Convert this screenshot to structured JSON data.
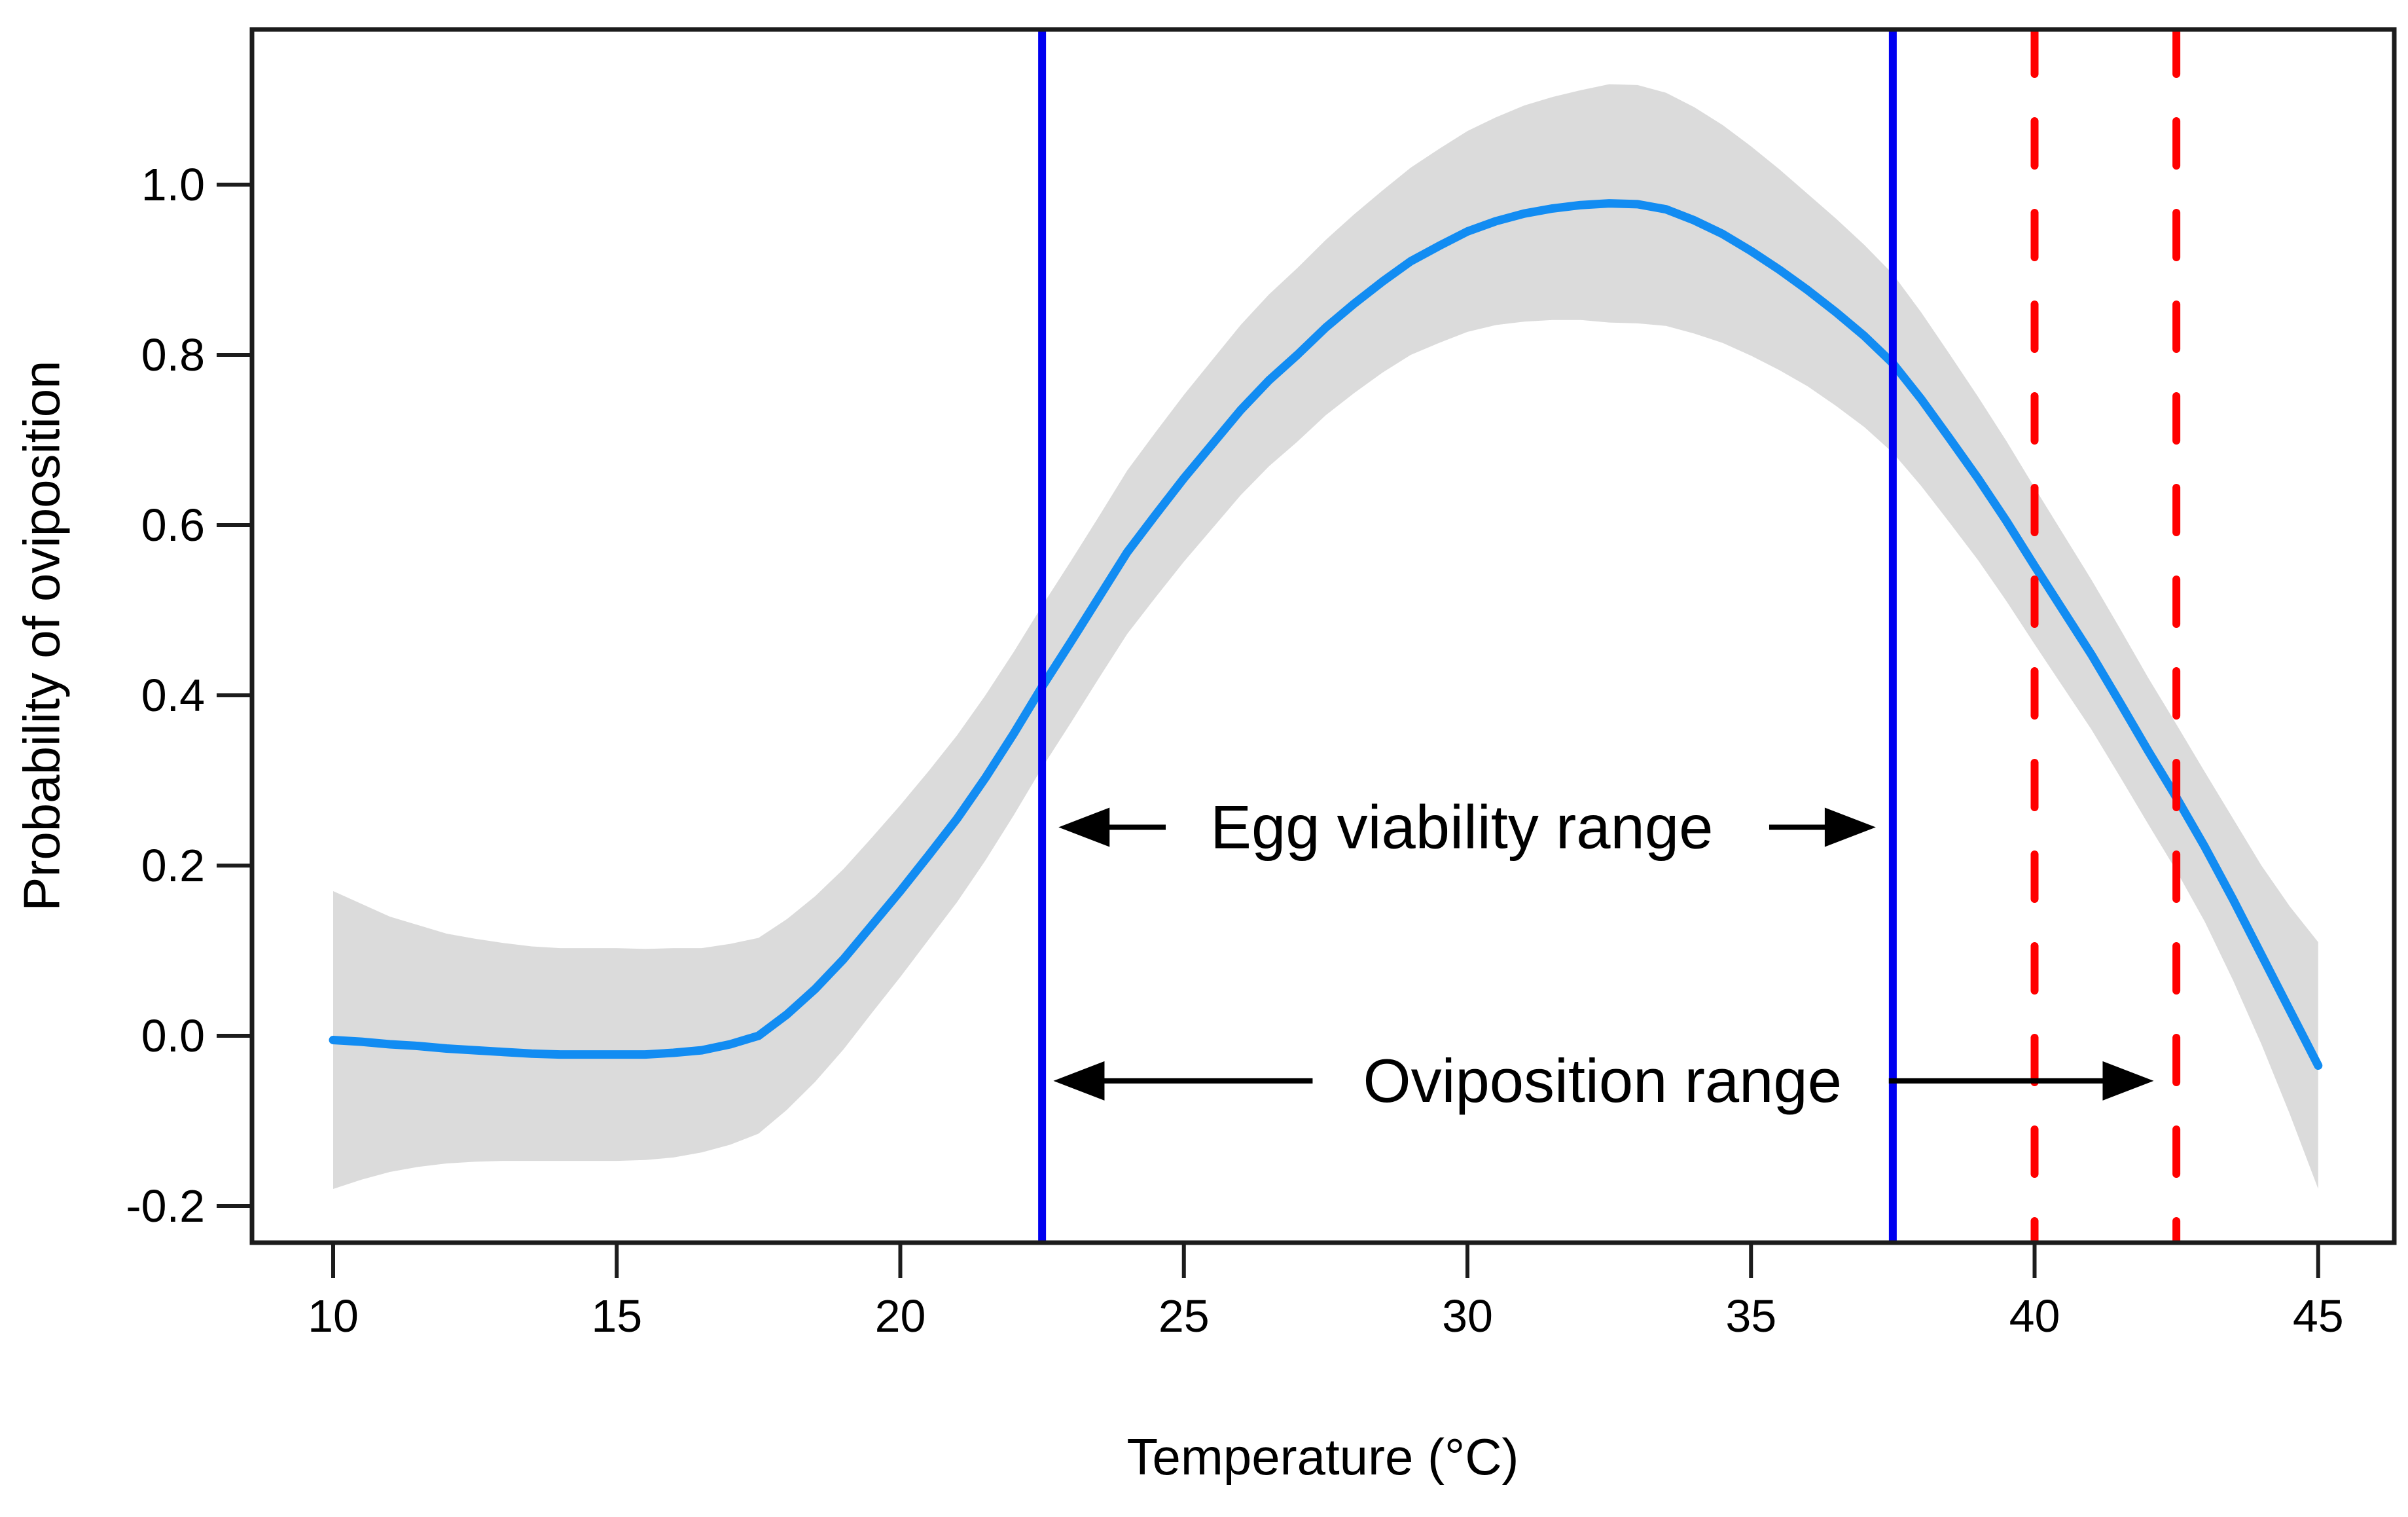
{
  "figure": {
    "background": "#ffffff"
  },
  "chart_data": {
    "type": "line",
    "title": "",
    "xlabel": "Temperature (°C)",
    "ylabel": "Probability of oviposition",
    "xlim": [
      8.6,
      46.4
    ],
    "ylim": [
      -0.243,
      1.182
    ],
    "grid": false,
    "legend_position": "none",
    "axis_color": "#1c1c1c",
    "text_color": "#000000",
    "x_ticks": [
      {
        "v": 10,
        "label": "10"
      },
      {
        "v": 15,
        "label": "15"
      },
      {
        "v": 20,
        "label": "20"
      },
      {
        "v": 25,
        "label": "25"
      },
      {
        "v": 30,
        "label": "30"
      },
      {
        "v": 35,
        "label": "35"
      },
      {
        "v": 40,
        "label": "40"
      },
      {
        "v": 45,
        "label": "45"
      }
    ],
    "y_ticks": [
      {
        "v": -0.2,
        "label": "-0.2"
      },
      {
        "v": 0.0,
        "label": "0.0"
      },
      {
        "v": 0.2,
        "label": "0.2"
      },
      {
        "v": 0.4,
        "label": "0.4"
      },
      {
        "v": 0.6,
        "label": "0.6"
      },
      {
        "v": 0.8,
        "label": "0.8"
      },
      {
        "v": 1.0,
        "label": "1.0"
      }
    ],
    "x": [
      10,
      10.5,
      11,
      11.5,
      12,
      12.5,
      13,
      13.5,
      14,
      14.5,
      15,
      15.5,
      16,
      16.5,
      17,
      17.5,
      18,
      18.5,
      19,
      19.5,
      20,
      20.5,
      21,
      21.5,
      22,
      22.5,
      23,
      23.5,
      24,
      24.5,
      25,
      25.5,
      26,
      26.5,
      27,
      27.5,
      28,
      28.5,
      29,
      29.5,
      30,
      30.5,
      31,
      31.5,
      32,
      32.5,
      33,
      33.5,
      34,
      34.5,
      35,
      35.5,
      36,
      36.5,
      37,
      37.5,
      38,
      38.5,
      39,
      39.5,
      40,
      40.5,
      41,
      41.5,
      42,
      42.5,
      43,
      43.5,
      44,
      44.5,
      45
    ],
    "series": [
      {
        "name": "fitted-oviposition-probability",
        "color": "#128CF2",
        "values": [
          -0.005,
          -0.007,
          -0.01,
          -0.012,
          -0.015,
          -0.017,
          -0.019,
          -0.021,
          -0.022,
          -0.022,
          -0.022,
          -0.022,
          -0.02,
          -0.017,
          -0.01,
          0.0,
          0.025,
          0.055,
          0.09,
          0.13,
          0.17,
          0.212,
          0.255,
          0.303,
          0.355,
          0.41,
          0.462,
          0.515,
          0.568,
          0.612,
          0.655,
          0.695,
          0.735,
          0.77,
          0.8,
          0.832,
          0.86,
          0.886,
          0.91,
          0.928,
          0.945,
          0.957,
          0.966,
          0.972,
          0.976,
          0.978,
          0.977,
          0.971,
          0.958,
          0.942,
          0.922,
          0.9,
          0.876,
          0.85,
          0.822,
          0.79,
          0.748,
          0.702,
          0.655,
          0.605,
          0.552,
          0.5,
          0.448,
          0.392,
          0.335,
          0.28,
          0.222,
          0.16,
          0.095,
          0.03,
          -0.035
        ]
      }
    ],
    "confidence_band": {
      "name": "confidence-band",
      "color": "#DBDBDB",
      "half_width": [
        0.175,
        0.162,
        0.15,
        0.142,
        0.135,
        0.131,
        0.128,
        0.126,
        0.125,
        0.125,
        0.125,
        0.124,
        0.123,
        0.12,
        0.118,
        0.115,
        0.112,
        0.109,
        0.106,
        0.103,
        0.101,
        0.099,
        0.098,
        0.097,
        0.096,
        0.095,
        0.095,
        0.095,
        0.096,
        0.097,
        0.098,
        0.099,
        0.1,
        0.101,
        0.102,
        0.103,
        0.105,
        0.107,
        0.11,
        0.114,
        0.118,
        0.122,
        0.127,
        0.131,
        0.135,
        0.14,
        0.14,
        0.137,
        0.133,
        0.128,
        0.123,
        0.118,
        0.113,
        0.11,
        0.107,
        0.105,
        0.102,
        0.099,
        0.096,
        0.094,
        0.092,
        0.09,
        0.088,
        0.087,
        0.086,
        0.086,
        0.088,
        0.095,
        0.105,
        0.122,
        0.145
      ]
    },
    "reference_lines": [
      {
        "name": "egg-viability-lower-limit",
        "x": 22.5,
        "style": "solid",
        "color": "#0000F0"
      },
      {
        "name": "egg-viability-upper-limit",
        "x": 37.5,
        "style": "solid",
        "color": "#0000F0"
      },
      {
        "name": "red-dashed-limit-1",
        "x": 40.0,
        "style": "dashed",
        "color": "#FF0000"
      },
      {
        "name": "red-dashed-limit-2",
        "x": 42.5,
        "style": "dashed",
        "color": "#FF0000"
      }
    ],
    "annotations": [
      {
        "name": "egg-viability-range",
        "text": "Egg viability range",
        "x": 29.9,
        "y": 0.245,
        "arrows": [
          {
            "x1": 24.68,
            "x2": 22.79
          },
          {
            "x1": 35.32,
            "x2": 37.2
          }
        ]
      },
      {
        "name": "oviposition-range",
        "text": "Oviposition range",
        "x": 32.38,
        "y": -0.053,
        "arrows": [
          {
            "x1": 27.27,
            "x2": 22.7
          },
          {
            "x1": 37.43,
            "x2": 42.1
          }
        ]
      }
    ]
  }
}
